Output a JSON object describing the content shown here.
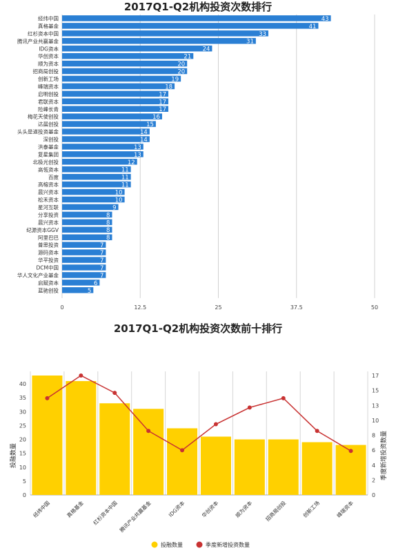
{
  "chart_data": [
    {
      "type": "bar",
      "orientation": "horizontal",
      "title": "2017Q1-Q2机构投资次数排行",
      "categories": [
        "经纬中国",
        "真格基金",
        "红杉资本中国",
        "腾讯产业共赢基金",
        "IDG资本",
        "华创资本",
        "顺为资本",
        "招商局创投",
        "创新工场",
        "峰瑞资本",
        "启明创投",
        "君联资本",
        "险峰长青",
        "梅花天使创投",
        "达晨创投",
        "头头是道投资基金",
        "深创投",
        "洪泰基金",
        "复星集团",
        "北极光创投",
        "高瓴资本",
        "百度",
        "高榕资本",
        "晨兴资本",
        "松禾资本",
        "星河互联",
        "分享投资",
        "晨兴资本",
        "纪源资本GGV",
        "阿里巴巴",
        "普思投资",
        "源码资本",
        "华平投资",
        "DCM中国",
        "华人文化产业基金",
        "启赋资本",
        "蓝驰创投"
      ],
      "values": [
        43,
        41,
        33,
        31,
        24,
        21,
        20,
        20,
        19,
        18,
        17,
        17,
        17,
        16,
        15,
        14,
        14,
        13,
        13,
        12,
        11,
        11,
        11,
        10,
        10,
        9,
        8,
        8,
        8,
        8,
        7,
        7,
        7,
        7,
        7,
        6,
        5
      ],
      "xlim": [
        0,
        50
      ],
      "xticks": [
        "0",
        "12.5",
        "25",
        "37.5",
        "50"
      ],
      "bar_color": "#2a7fd4",
      "grid": true
    },
    {
      "type": "bar+line",
      "title": "2017Q1-Q2机构投资次数前十排行",
      "categories": [
        "经纬中国",
        "真格基金",
        "红杉资本中国",
        "腾讯产业共赢基金",
        "IDG资本",
        "华创资本",
        "顺为资本",
        "招商局创投",
        "创新工场",
        "峰瑞资本"
      ],
      "series": [
        {
          "name": "投融数量",
          "type": "bar",
          "axis": "left",
          "color": "#ffd000",
          "values": [
            43,
            41,
            33,
            31,
            24,
            21,
            20,
            20,
            19,
            18
          ]
        },
        {
          "name": "季度新增投资数量",
          "type": "line",
          "axis": "right",
          "color": "#c83232",
          "values": [
            14.5,
            17.9,
            15.3,
            9.6,
            6.7,
            10.6,
            13.1,
            14.5,
            9.6,
            6.6
          ]
        }
      ],
      "ylabel": "投融数量",
      "y2label": "季度新增投资数量",
      "ylim": [
        0,
        43
      ],
      "y2lim": [
        0,
        17.9
      ],
      "yticks": [
        "0",
        "5",
        "10",
        "15",
        "20",
        "25",
        "30",
        "35",
        "40"
      ],
      "y2ticks": [
        "0",
        "2",
        "4",
        "6",
        "8",
        "10",
        "13",
        "15",
        "17"
      ],
      "legend_position": "bottom",
      "grid": true
    }
  ]
}
